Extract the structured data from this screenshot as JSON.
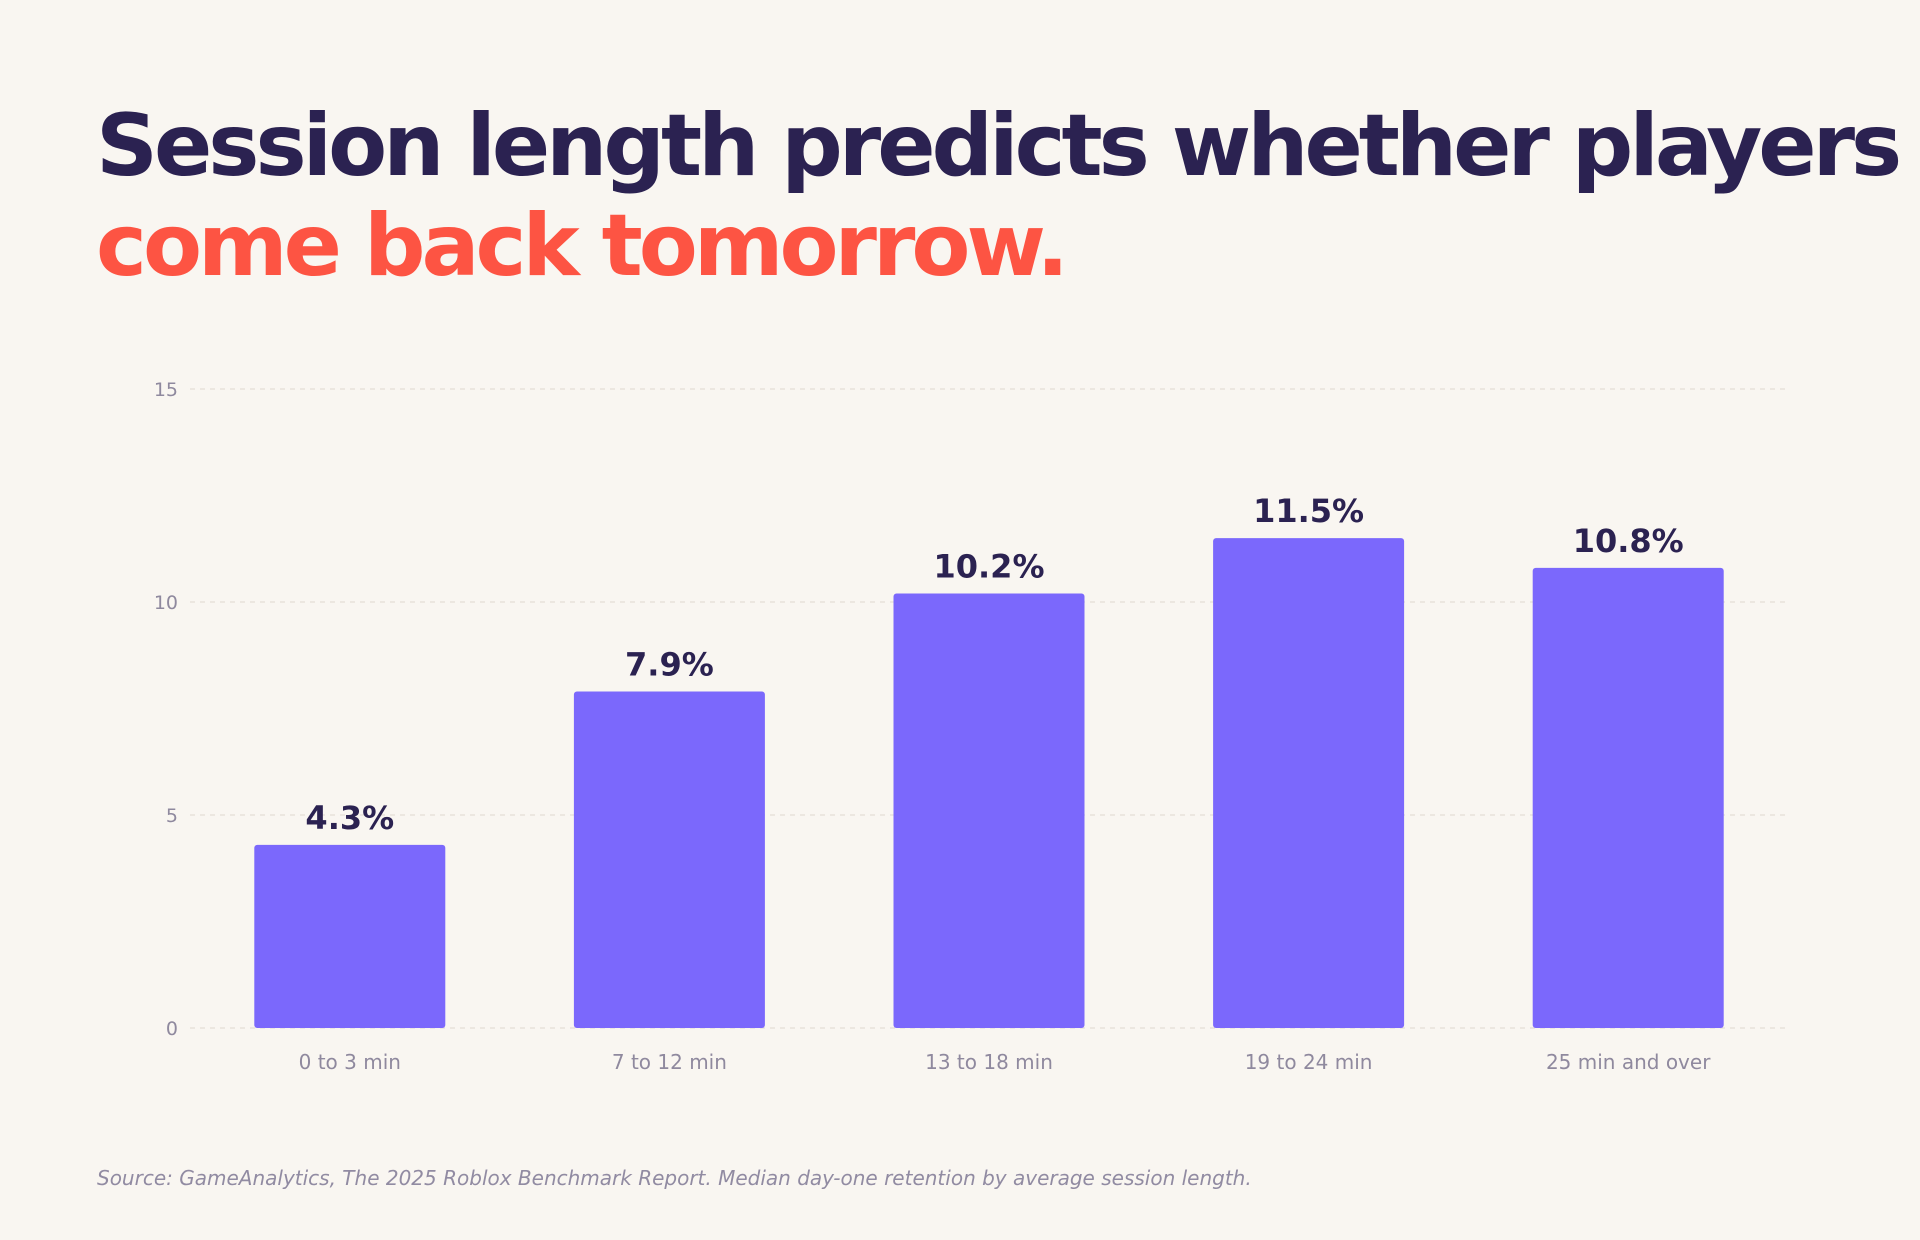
{
  "headline": {
    "line1": "Session length predicts whether players",
    "line2": "come back tomorrow."
  },
  "colors": {
    "background": "#f9f6f1",
    "headline_primary": "#2b2251",
    "headline_accent": "#fd5443",
    "bar": "#7b68fc",
    "value_label": "#2b2251",
    "axis_text": "#8f899e",
    "grid": "#e7e2da"
  },
  "chart_data": {
    "type": "bar",
    "categories": [
      "0 to 3 min",
      "7 to 12 min",
      "13 to 18 min",
      "19 to 24 min",
      "25 min and over"
    ],
    "values": [
      4.3,
      7.9,
      10.2,
      11.5,
      10.8
    ],
    "value_labels": [
      "4.3%",
      "7.9%",
      "10.2%",
      "11.5%",
      "10.8%"
    ],
    "yticks": [
      0,
      5,
      10,
      15
    ],
    "ylim": [
      0,
      15
    ],
    "grid": true,
    "title": "",
    "xlabel": "",
    "ylabel": ""
  },
  "source": "Source: GameAnalytics, The 2025 Roblox Benchmark Report. Median day-one retention by average session length."
}
